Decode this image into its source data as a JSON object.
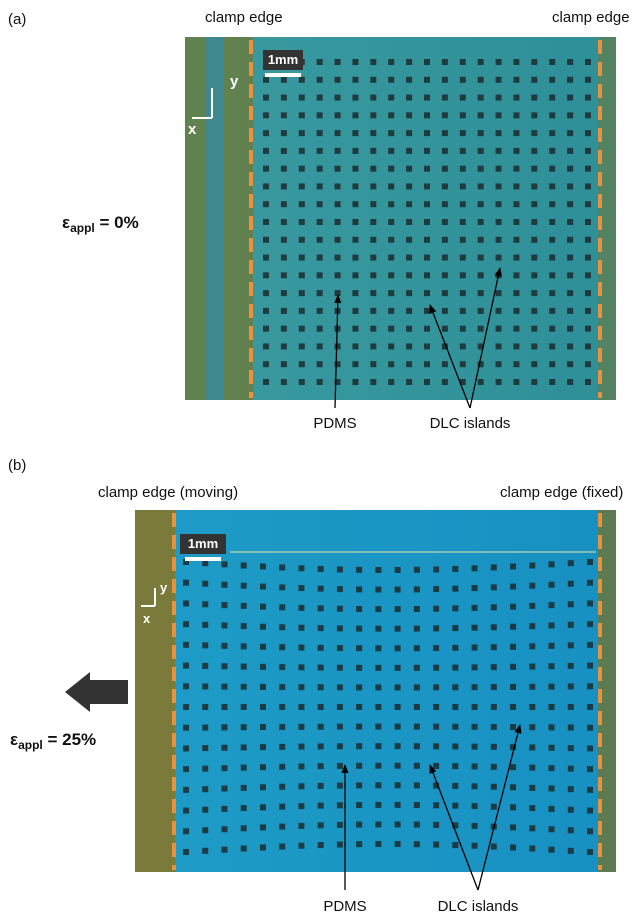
{
  "panel_a": {
    "label": "(a)",
    "clamp_left": "clamp edge",
    "clamp_right": "clamp edge",
    "strain_symbol": "ε",
    "strain_subscript": "appl",
    "strain_value": " = 0%",
    "scale_bar": "1mm",
    "axis_y": "y",
    "axis_x": "x",
    "pdms": "PDMS",
    "dlc": "DLC islands"
  },
  "panel_b": {
    "label": "(b)",
    "clamp_left": "clamp edge (moving)",
    "clamp_right": "clamp edge (fixed)",
    "strain_symbol": "ε",
    "strain_subscript": "appl",
    "strain_value": " = 25%",
    "scale_bar": "1mm",
    "axis_y": "y",
    "axis_x": "x",
    "pdms": "PDMS",
    "dlc": "DLC islands"
  }
}
